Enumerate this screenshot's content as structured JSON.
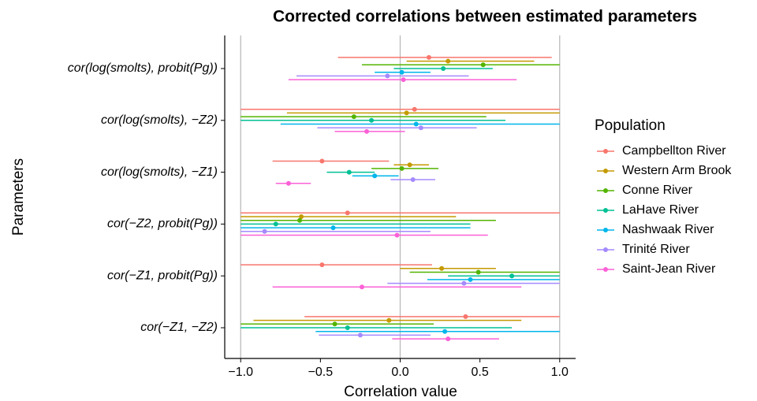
{
  "chart_data": {
    "type": "forest",
    "title": "Corrected correlations between estimated parameters",
    "x_label": "Correlation value",
    "y_label": "Parameters",
    "legend_title": "Population",
    "categories": [
      "cor(log(smolts), probit(Pg))",
      "cor(log(smolts), −Z2)",
      "cor(log(smolts), −Z1)",
      "cor(−Z2, probit(Pg))",
      "cor(−Z1, probit(Pg))",
      "cor(−Z1, −Z2)"
    ],
    "xlim": [
      -1.1,
      1.1
    ],
    "xticks": [
      {
        "value": -1.0,
        "label": "−1.0"
      },
      {
        "value": -0.5,
        "label": "−0.5"
      },
      {
        "value": 0,
        "label": "0.0"
      },
      {
        "value": 0.5,
        "label": "0.5"
      },
      {
        "value": 1.0,
        "label": "1.0"
      }
    ],
    "reference_lines": [
      -1,
      0,
      1
    ],
    "series": [
      {
        "name": "Campbellton River",
        "color": "#F8766D",
        "values": [
          0.18,
          0.09,
          -0.49,
          -0.33,
          -0.49,
          0.41
        ],
        "lower": [
          -0.39,
          -1.0,
          -0.8,
          -1.0,
          -1.0,
          -0.6
        ],
        "upper": [
          0.95,
          1.0,
          -0.07,
          1.0,
          0.2,
          1.0
        ]
      },
      {
        "name": "Western Arm Brook",
        "color": "#C49A00",
        "values": [
          0.3,
          0.04,
          0.06,
          -0.62,
          0.26,
          -0.07
        ],
        "lower": [
          0.04,
          -0.71,
          -0.04,
          -1.0,
          0.0,
          -0.92
        ],
        "upper": [
          0.84,
          1.0,
          0.18,
          0.35,
          0.6,
          0.76
        ]
      },
      {
        "name": "Conne River",
        "color": "#53B400",
        "values": [
          0.52,
          -0.29,
          0.01,
          -0.63,
          0.49,
          -0.41
        ],
        "lower": [
          -0.24,
          -1.0,
          -0.18,
          -1.0,
          0.06,
          -1.0
        ],
        "upper": [
          1.0,
          0.54,
          0.24,
          0.6,
          1.0,
          0.21
        ]
      },
      {
        "name": "LaHave River",
        "color": "#00C094",
        "values": [
          0.27,
          -0.18,
          -0.32,
          -0.78,
          0.7,
          -0.33
        ],
        "lower": [
          -0.04,
          -1.0,
          -0.46,
          -1.0,
          0.3,
          -1.0
        ],
        "upper": [
          0.58,
          0.66,
          -0.16,
          0.44,
          1.0,
          0.7
        ]
      },
      {
        "name": "Nashwaak River",
        "color": "#00B6EB",
        "values": [
          0.01,
          0.1,
          -0.16,
          -0.42,
          0.44,
          0.28
        ],
        "lower": [
          -0.16,
          -0.75,
          -0.3,
          -1.0,
          0.17,
          -0.53
        ],
        "upper": [
          0.19,
          1.0,
          -0.01,
          0.44,
          1.0,
          1.0
        ]
      },
      {
        "name": "Trinité River",
        "color": "#A58AFF",
        "values": [
          -0.08,
          0.13,
          0.08,
          -0.85,
          0.4,
          -0.25
        ],
        "lower": [
          -0.65,
          -0.52,
          -0.06,
          -1.0,
          -0.08,
          -0.51
        ],
        "upper": [
          0.43,
          0.48,
          0.22,
          0.19,
          1.0,
          0.19
        ]
      },
      {
        "name": "Saint-Jean River",
        "color": "#FB61D7",
        "values": [
          0.02,
          -0.21,
          -0.7,
          -0.02,
          -0.24,
          0.3
        ],
        "lower": [
          -0.7,
          -0.41,
          -0.78,
          -1.0,
          -0.8,
          -0.05
        ],
        "upper": [
          0.73,
          0.03,
          -0.56,
          0.55,
          0.76,
          0.62
        ]
      }
    ]
  }
}
